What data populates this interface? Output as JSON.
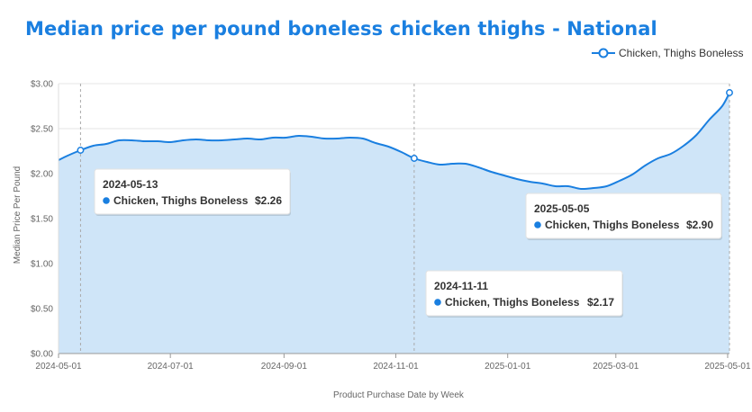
{
  "chart_data": {
    "type": "area",
    "title": "Median price per pound boneless chicken thighs - National",
    "xlabel": "Product Purchase Date by Week",
    "ylabel": "Median Price Per Pound",
    "x_tick_labels": [
      "2024-05-01",
      "2024-07-01",
      "2024-09-01",
      "2024-11-01",
      "2025-01-01",
      "2025-03-01",
      "2025-05-01"
    ],
    "y_tick_labels": [
      "$0.00",
      "$0.50",
      "$1.00",
      "$1.50",
      "$2.00",
      "$2.50",
      "$3.00"
    ],
    "ylim": [
      0,
      3
    ],
    "xlim": [
      "2024-05-01",
      "2025-05-02"
    ],
    "grid": true,
    "legend_position": "top-right",
    "colors": {
      "line": "#1a7fe0",
      "fill": "#cfe5f8",
      "title": "#1a7fe0"
    },
    "series": [
      {
        "name": "Chicken, Thighs Boneless",
        "x": [
          "2024-04-29",
          "2024-05-06",
          "2024-05-13",
          "2024-05-20",
          "2024-05-27",
          "2024-06-03",
          "2024-06-10",
          "2024-06-17",
          "2024-06-24",
          "2024-07-01",
          "2024-07-08",
          "2024-07-15",
          "2024-07-22",
          "2024-07-29",
          "2024-08-05",
          "2024-08-12",
          "2024-08-19",
          "2024-08-26",
          "2024-09-02",
          "2024-09-09",
          "2024-09-16",
          "2024-09-23",
          "2024-09-30",
          "2024-10-07",
          "2024-10-14",
          "2024-10-21",
          "2024-10-28",
          "2024-11-04",
          "2024-11-11",
          "2024-11-18",
          "2024-11-25",
          "2024-12-02",
          "2024-12-09",
          "2024-12-16",
          "2024-12-23",
          "2024-12-30",
          "2025-01-06",
          "2025-01-13",
          "2025-01-20",
          "2025-01-27",
          "2025-02-03",
          "2025-02-10",
          "2025-02-17",
          "2025-02-24",
          "2025-03-03",
          "2025-03-10",
          "2025-03-17",
          "2025-03-24",
          "2025-03-31",
          "2025-04-07",
          "2025-04-14",
          "2025-04-21",
          "2025-04-28",
          "2025-05-05"
        ],
        "values": [
          2.15,
          2.2,
          2.26,
          2.31,
          2.33,
          2.37,
          2.37,
          2.36,
          2.36,
          2.35,
          2.37,
          2.38,
          2.37,
          2.37,
          2.38,
          2.39,
          2.38,
          2.4,
          2.4,
          2.42,
          2.41,
          2.39,
          2.39,
          2.4,
          2.39,
          2.34,
          2.3,
          2.24,
          2.17,
          2.13,
          2.1,
          2.11,
          2.11,
          2.07,
          2.02,
          1.98,
          1.94,
          1.91,
          1.89,
          1.86,
          1.86,
          1.83,
          1.84,
          1.86,
          1.92,
          1.99,
          2.09,
          2.17,
          2.22,
          2.31,
          2.43,
          2.6,
          2.75,
          2.9
        ]
      }
    ],
    "tooltips": [
      {
        "date": "2024-05-13",
        "series": "Chicken, Thighs Boneless",
        "value": "$2.26"
      },
      {
        "date": "2024-11-11",
        "series": "Chicken, Thighs Boneless",
        "value": "$2.17"
      },
      {
        "date": "2025-05-05",
        "series": "Chicken, Thighs Boneless",
        "value": "$2.90"
      }
    ]
  }
}
